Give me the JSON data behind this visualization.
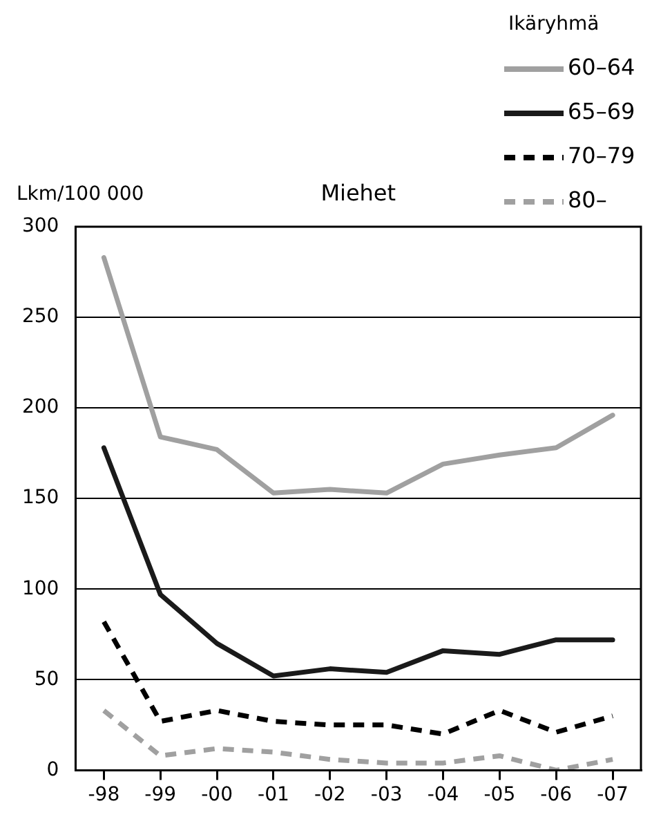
{
  "chart_data": {
    "type": "line",
    "title": "Miehet",
    "ylabel": "Lkm/100 000",
    "legend_title": "Ikäryhmä",
    "legend": "top right",
    "grid": "y",
    "marker": "none",
    "categories": [
      "-98",
      "-99",
      "-00",
      "-01",
      "-02",
      "-03",
      "-04",
      "-05",
      "-06",
      "-07"
    ],
    "ylim": [
      0,
      300
    ],
    "yticks": [
      0,
      50,
      100,
      150,
      200,
      250,
      300
    ],
    "series": [
      {
        "name": "60–64",
        "color": "#a0a0a0",
        "line_style": "solid",
        "values": [
          283,
          184,
          177,
          153,
          155,
          153,
          169,
          174,
          178,
          196
        ]
      },
      {
        "name": "65–69",
        "color": "#1a1a1a",
        "line_style": "solid",
        "values": [
          178,
          97,
          70,
          52,
          56,
          54,
          66,
          64,
          72,
          72
        ]
      },
      {
        "name": "70–79",
        "color": "#000000",
        "line_style": "dashed",
        "values": [
          82,
          27,
          33,
          27,
          25,
          25,
          20,
          33,
          21,
          30
        ]
      },
      {
        "name": "80–",
        "color": "#a0a0a0",
        "line_style": "dashed",
        "values": [
          33,
          8,
          12,
          10,
          6,
          4,
          4,
          8,
          0,
          6
        ]
      }
    ]
  }
}
